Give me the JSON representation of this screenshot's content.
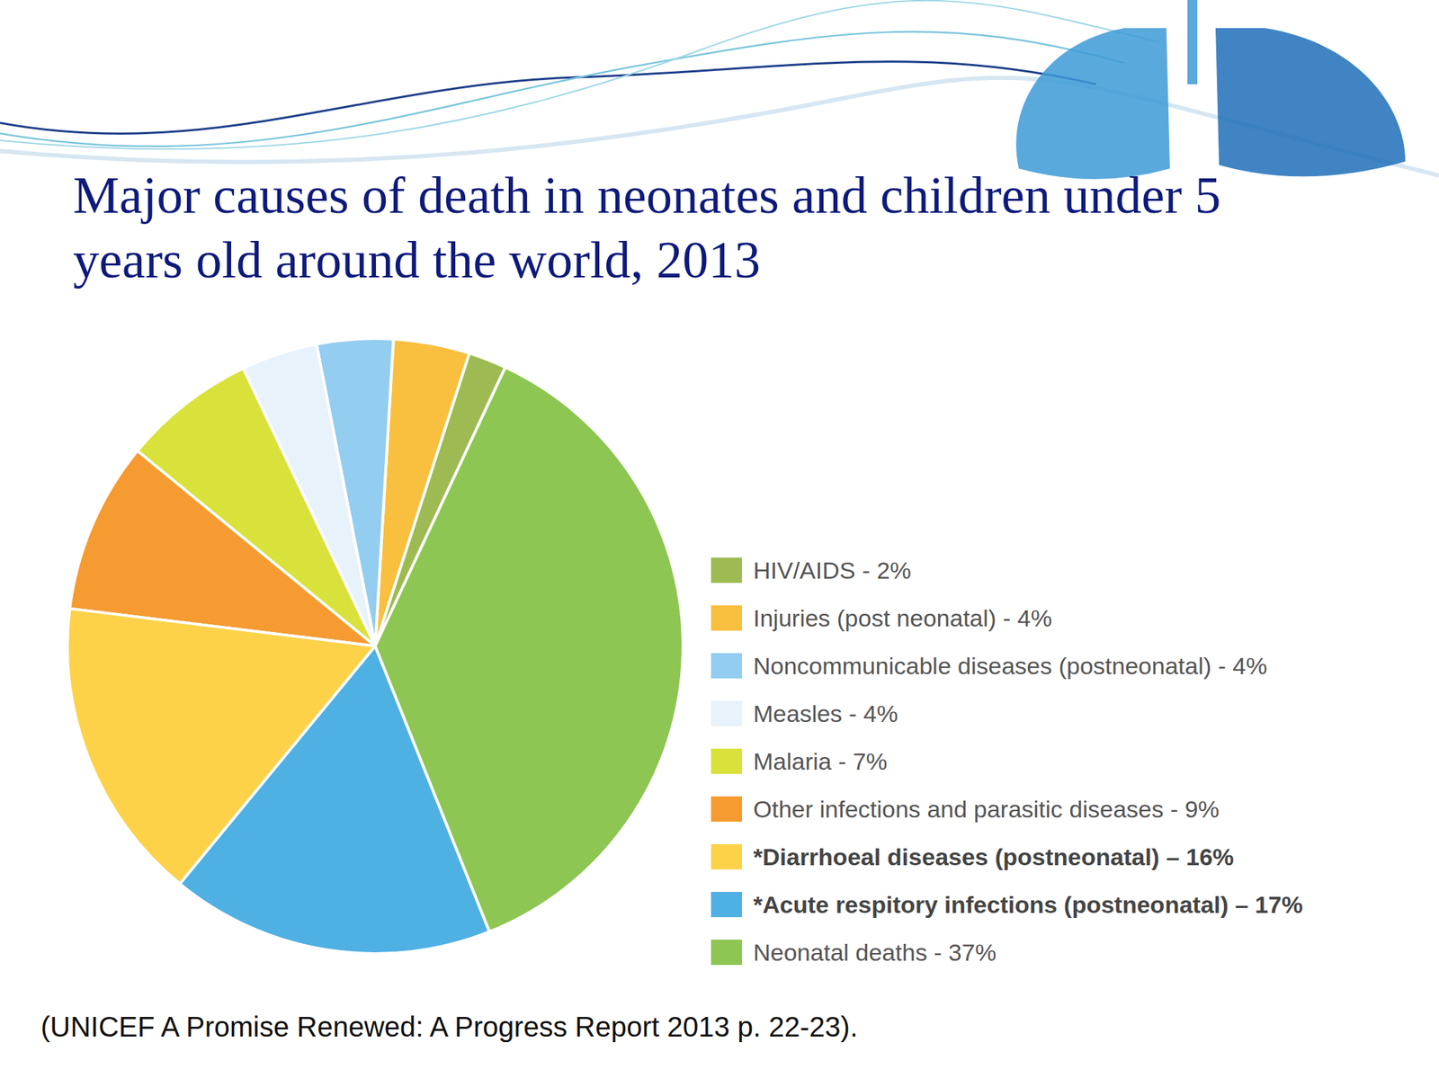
{
  "chart_data": {
    "type": "pie",
    "title": "Major causes of death in neonates and children under 5 years old around the world, 2013",
    "categories": [
      "HIV/AIDS - 2%",
      "Injuries (post neonatal) - 4%",
      "Noncommunicable diseases (postneonatal) - 4%",
      "Measles - 4%",
      "Malaria - 7%",
      "Other infections and parasitic diseases - 9%",
      "*Diarrhoeal diseases (postneonatal) – 16%",
      "*Acute respitory infections (postneonatal) – 17%",
      "Neonatal deaths - 37%"
    ],
    "values": [
      2,
      4,
      4,
      4,
      7,
      9,
      16,
      17,
      37
    ],
    "colors": [
      "#9dbb52",
      "#f9bf3f",
      "#93cdf0",
      "#e8f2fb",
      "#d9e23a",
      "#f59b31",
      "#fdd249",
      "#4fb0e3",
      "#8dc652"
    ],
    "legend": "right",
    "source": "(UNICEF A Promise Renewed: A Progress Report 2013 p. 22-23)."
  }
}
